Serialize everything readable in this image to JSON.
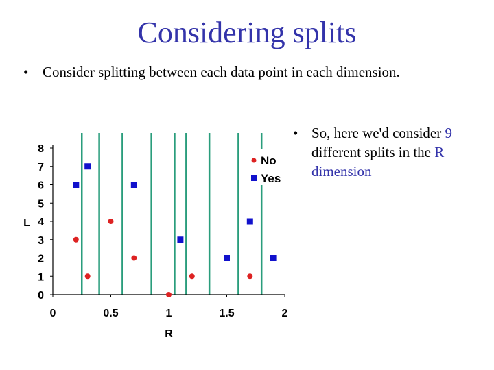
{
  "slide": {
    "title": "Considering splits",
    "bullet1": "Consider splitting between each data point in each dimension.",
    "bullet2": {
      "part1": "So, here we'd consider ",
      "count": "9",
      "part2": " different splits in the ",
      "dim": "R",
      "part3": " dimension"
    },
    "bullet_marker": "•"
  },
  "colors": {
    "title": "#3333aa",
    "split_line": "#2a9d7c",
    "no": "#dd2222",
    "yes": "#1111cc",
    "axis": "#000000"
  },
  "chart_data": {
    "type": "scatter",
    "xlabel": "R",
    "ylabel": "L",
    "xlim": [
      0,
      2
    ],
    "ylim": [
      0,
      8
    ],
    "x_ticks": [
      "0",
      "0.5",
      "1",
      "1.5",
      "2"
    ],
    "y_ticks": [
      "0",
      "1",
      "2",
      "3",
      "4",
      "5",
      "6",
      "7",
      "8"
    ],
    "legend_position": "top-right",
    "series": [
      {
        "name": "No",
        "marker": "circle",
        "points": [
          [
            0.2,
            3
          ],
          [
            0.3,
            1
          ],
          [
            0.5,
            4
          ],
          [
            0.7,
            2
          ],
          [
            1.0,
            0
          ],
          [
            1.2,
            1
          ],
          [
            1.7,
            1
          ]
        ]
      },
      {
        "name": "Yes",
        "marker": "square",
        "points": [
          [
            0.2,
            6
          ],
          [
            0.3,
            7
          ],
          [
            0.7,
            6
          ],
          [
            1.1,
            3
          ],
          [
            1.5,
            2
          ],
          [
            1.7,
            4
          ],
          [
            1.9,
            2
          ]
        ]
      }
    ],
    "split_lines_x": [
      0.25,
      0.4,
      0.6,
      0.85,
      1.05,
      1.15,
      1.35,
      1.6,
      1.8
    ]
  }
}
